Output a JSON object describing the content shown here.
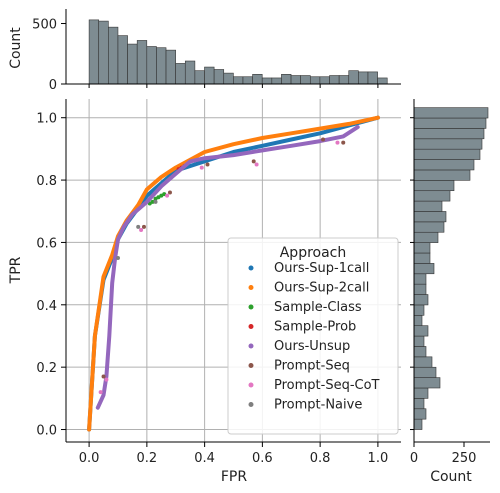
{
  "chart_data": {
    "type": "scatter",
    "xlabel": "FPR",
    "ylabel": "TPR",
    "xlim": [
      -0.08,
      1.08
    ],
    "ylim": [
      -0.04,
      1.06
    ],
    "xticks": [
      "0.0",
      "0.2",
      "0.4",
      "0.6",
      "0.8",
      "1.0"
    ],
    "yticks": [
      "0.0",
      "0.2",
      "0.4",
      "0.6",
      "0.8",
      "1.0"
    ],
    "grid": true,
    "legend": {
      "title": "Approach",
      "placement": "lower-right"
    },
    "series": [
      {
        "name": "Ours-Sup-1call",
        "color": "#1f77b4",
        "style": "line",
        "x": [
          0.0,
          0.02,
          0.05,
          0.08,
          0.1,
          0.13,
          0.17,
          0.2,
          0.25,
          0.3,
          0.4,
          0.5,
          0.6,
          0.7,
          0.8,
          0.9,
          1.0
        ],
        "y": [
          0.0,
          0.3,
          0.48,
          0.55,
          0.61,
          0.66,
          0.71,
          0.75,
          0.79,
          0.83,
          0.86,
          0.89,
          0.91,
          0.93,
          0.95,
          0.975,
          1.0
        ]
      },
      {
        "name": "Ours-Sup-2call",
        "color": "#ff7f0e",
        "style": "line",
        "x": [
          0.0,
          0.02,
          0.05,
          0.08,
          0.1,
          0.13,
          0.17,
          0.2,
          0.25,
          0.3,
          0.4,
          0.5,
          0.6,
          0.7,
          0.8,
          0.9,
          1.0
        ],
        "y": [
          0.0,
          0.3,
          0.49,
          0.56,
          0.62,
          0.67,
          0.72,
          0.77,
          0.81,
          0.84,
          0.89,
          0.915,
          0.935,
          0.95,
          0.965,
          0.98,
          1.0
        ]
      },
      {
        "name": "Sample-Class",
        "color": "#2ca02c",
        "style": "points",
        "x": [
          0.21,
          0.22,
          0.23,
          0.24,
          0.25,
          0.26
        ],
        "y": [
          0.725,
          0.73,
          0.74,
          0.745,
          0.75,
          0.755
        ]
      },
      {
        "name": "Sample-Prob",
        "color": "#d62728",
        "style": "points",
        "x": [
          0.31,
          0.32,
          0.33
        ],
        "y": [
          0.835,
          0.84,
          0.845
        ]
      },
      {
        "name": "Ours-Unsup",
        "color": "#9467bd",
        "style": "line",
        "x": [
          0.03,
          0.05,
          0.06,
          0.07,
          0.08,
          0.09,
          0.1,
          0.12,
          0.15,
          0.2,
          0.25,
          0.3,
          0.35,
          0.4,
          0.5,
          0.6,
          0.7,
          0.8,
          0.88,
          0.93
        ],
        "y": [
          0.07,
          0.11,
          0.17,
          0.3,
          0.47,
          0.55,
          0.61,
          0.65,
          0.69,
          0.73,
          0.78,
          0.82,
          0.86,
          0.87,
          0.88,
          0.895,
          0.91,
          0.925,
          0.94,
          0.97
        ]
      },
      {
        "name": "Prompt-Seq",
        "color": "#8c564b",
        "style": "points",
        "x": [
          0.05,
          0.19,
          0.28,
          0.41,
          0.57,
          0.81,
          0.88
        ],
        "y": [
          0.17,
          0.65,
          0.76,
          0.85,
          0.86,
          0.93,
          0.92
        ]
      },
      {
        "name": "Prompt-Seq-CoT",
        "color": "#e377c2",
        "style": "points",
        "x": [
          0.04,
          0.06,
          0.18,
          0.27,
          0.39,
          0.58,
          0.86
        ],
        "y": [
          0.12,
          0.16,
          0.64,
          0.75,
          0.84,
          0.85,
          0.92
        ]
      },
      {
        "name": "Prompt-Naive",
        "color": "#7f7f7f",
        "style": "points",
        "x": [
          0.1,
          0.17,
          0.23
        ],
        "y": [
          0.55,
          0.65,
          0.73
        ]
      }
    ],
    "top_histogram": {
      "ylabel": "Count",
      "yticks": [
        "0",
        "500"
      ],
      "ylim": [
        0,
        620
      ],
      "bin_edges_start": 0.0,
      "bin_width": 0.0333,
      "values": [
        530,
        520,
        470,
        400,
        330,
        360,
        310,
        300,
        280,
        170,
        190,
        110,
        140,
        120,
        90,
        60,
        60,
        80,
        50,
        50,
        80,
        70,
        70,
        60,
        60,
        70,
        70,
        110,
        100,
        100,
        50
      ]
    },
    "right_histogram": {
      "xlabel": "Count",
      "xticks": [
        "0",
        "250"
      ],
      "xlim": [
        0,
        380
      ],
      "bin_edges_start": 0.0,
      "bin_width": 0.0333,
      "values": [
        40,
        60,
        50,
        70,
        130,
        110,
        90,
        60,
        50,
        70,
        40,
        50,
        70,
        60,
        60,
        100,
        80,
        80,
        120,
        150,
        160,
        140,
        180,
        200,
        280,
        300,
        330,
        340,
        350,
        360,
        370
      ]
    }
  }
}
